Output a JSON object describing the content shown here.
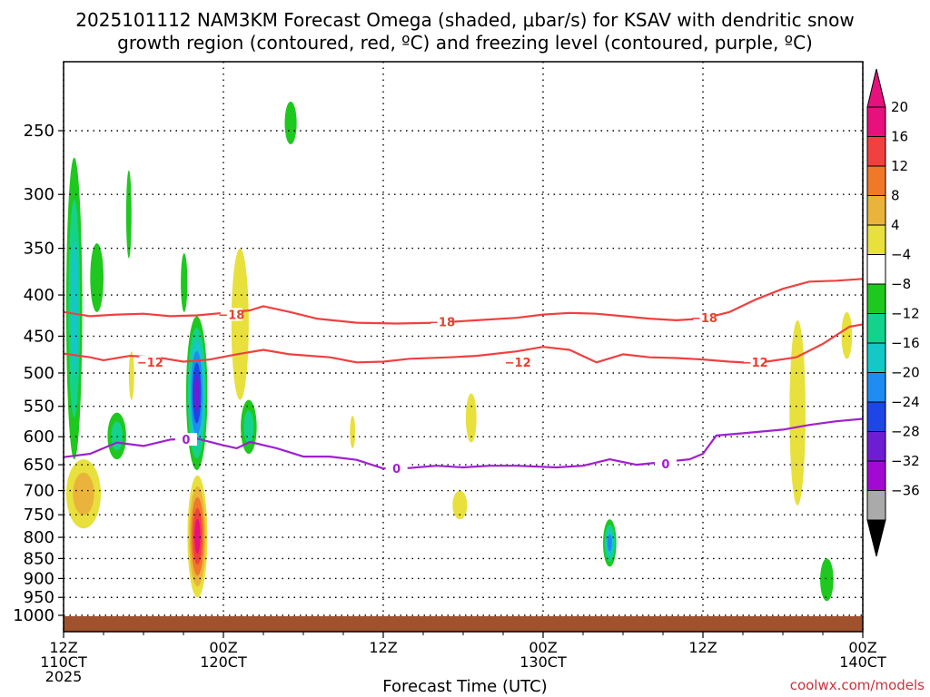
{
  "title": {
    "line1": "2025101112 NAM3KM Forecast Omega (shaded, μbar/s) for KSAV with dendritic snow",
    "line2": "growth region (contoured, red, ºC) and freezing level (contoured, purple, ºC)"
  },
  "credit": "coolwx.com/models",
  "chart_data": {
    "type": "heatmap",
    "xlabel": "Forecast Time (UTC)",
    "ylabel": "",
    "x_ticks": [
      {
        "hour": 0,
        "line1": "12Z",
        "line2": "110CT",
        "line3": "2025"
      },
      {
        "hour": 12,
        "line1": "00Z",
        "line2": "120CT",
        "line3": ""
      },
      {
        "hour": 24,
        "line1": "12Z",
        "line2": "",
        "line3": ""
      },
      {
        "hour": 36,
        "line1": "00Z",
        "line2": "130CT",
        "line3": ""
      },
      {
        "hour": 48,
        "line1": "12Z",
        "line2": "",
        "line3": ""
      },
      {
        "hour": 60,
        "line1": "00Z",
        "line2": "140CT",
        "line3": ""
      }
    ],
    "xlim": [
      0,
      60
    ],
    "y_scale": "log-pressure",
    "ylim_hpa": [
      1000,
      200
    ],
    "y_ticks": [
      250,
      300,
      350,
      400,
      450,
      500,
      550,
      600,
      650,
      700,
      750,
      800,
      850,
      900,
      950,
      1000
    ],
    "grid": true,
    "colorbar": {
      "labels": [
        "20",
        "16",
        "12",
        "8",
        "4",
        "-4",
        "-8",
        "-12",
        "-16",
        "-20",
        "-24",
        "-28",
        "-32",
        "-36"
      ],
      "bins": [
        {
          "min": 20,
          "max": 24,
          "color": "#e8107c"
        },
        {
          "min": 16,
          "max": 20,
          "color": "#f04040"
        },
        {
          "min": 12,
          "max": 16,
          "color": "#f07828"
        },
        {
          "min": 8,
          "max": 12,
          "color": "#eab43c"
        },
        {
          "min": 4,
          "max": 8,
          "color": "#e8e03c"
        },
        {
          "min": -4,
          "max": 4,
          "color": "#ffffff"
        },
        {
          "min": -8,
          "max": -4,
          "color": "#1ec81e"
        },
        {
          "min": -12,
          "max": -8,
          "color": "#14d28c"
        },
        {
          "min": -16,
          "max": -12,
          "color": "#14c8c8"
        },
        {
          "min": -20,
          "max": -16,
          "color": "#1e8cf0"
        },
        {
          "min": -24,
          "max": -20,
          "color": "#1e46e6"
        },
        {
          "min": -28,
          "max": -24,
          "color": "#6e1ed2"
        },
        {
          "min": -32,
          "max": -28,
          "color": "#a00ad2"
        },
        {
          "min": -36,
          "max": -32,
          "color": "#aaaaaa"
        }
      ],
      "max_arrow_color": "#e8107c",
      "min_arrow_color": "#000000"
    },
    "contours": [
      {
        "name": "-18",
        "color": "#f04040",
        "label_class": "clabel-red",
        "points": [
          [
            0,
            420
          ],
          [
            2,
            425
          ],
          [
            4,
            423
          ],
          [
            6,
            422
          ],
          [
            8,
            425
          ],
          [
            10,
            424
          ],
          [
            12,
            421
          ],
          [
            14,
            418
          ],
          [
            15,
            413
          ],
          [
            17,
            420
          ],
          [
            19,
            428
          ],
          [
            22,
            433
          ],
          [
            25,
            434
          ],
          [
            28,
            433
          ],
          [
            31,
            430
          ],
          [
            34,
            427
          ],
          [
            36,
            423
          ],
          [
            38,
            421
          ],
          [
            40,
            422
          ],
          [
            42,
            425
          ],
          [
            44,
            428
          ],
          [
            46,
            430
          ],
          [
            48,
            428
          ],
          [
            50,
            420
          ],
          [
            52,
            405
          ],
          [
            54,
            393
          ],
          [
            56,
            385
          ],
          [
            58,
            384
          ],
          [
            60,
            382
          ]
        ],
        "labels": [
          [
            12.6,
            424
          ],
          [
            28.4,
            433
          ],
          [
            48.1,
            428
          ]
        ]
      },
      {
        "name": "-12",
        "color": "#f04040",
        "label_class": "clabel-red",
        "points": [
          [
            0,
            473
          ],
          [
            2,
            478
          ],
          [
            3,
            482
          ],
          [
            5,
            476
          ],
          [
            7,
            478
          ],
          [
            9,
            484
          ],
          [
            11,
            481
          ],
          [
            13,
            474
          ],
          [
            15,
            468
          ],
          [
            17,
            474
          ],
          [
            20,
            478
          ],
          [
            22,
            485
          ],
          [
            24,
            484
          ],
          [
            26,
            480
          ],
          [
            29,
            478
          ],
          [
            31,
            476
          ],
          [
            34,
            470
          ],
          [
            36,
            464
          ],
          [
            38,
            468
          ],
          [
            40,
            485
          ],
          [
            42,
            474
          ],
          [
            44,
            478
          ],
          [
            46,
            479
          ],
          [
            48,
            481
          ],
          [
            50,
            484
          ],
          [
            52,
            486
          ],
          [
            55,
            478
          ],
          [
            57,
            460
          ],
          [
            59,
            438
          ],
          [
            60,
            435
          ]
        ],
        "labels": [
          [
            6.5,
            486
          ],
          [
            34.1,
            486
          ],
          [
            51.9,
            486
          ]
        ]
      },
      {
        "name": "0",
        "color": "#a020d0",
        "label_class": "clabel-purple",
        "points": [
          [
            0,
            636
          ],
          [
            2,
            630
          ],
          [
            4,
            610
          ],
          [
            6,
            616
          ],
          [
            8,
            605
          ],
          [
            10,
            603
          ],
          [
            12,
            615
          ],
          [
            13,
            620
          ],
          [
            14,
            609
          ],
          [
            16,
            620
          ],
          [
            18,
            635
          ],
          [
            20,
            635
          ],
          [
            22,
            641
          ],
          [
            24,
            657
          ],
          [
            26,
            656
          ],
          [
            28,
            652
          ],
          [
            30,
            655
          ],
          [
            32,
            652
          ],
          [
            34,
            652
          ],
          [
            37,
            655
          ],
          [
            39,
            652
          ],
          [
            41,
            640
          ],
          [
            43,
            650
          ],
          [
            45,
            645
          ],
          [
            47,
            640
          ],
          [
            48,
            630
          ],
          [
            49,
            598
          ],
          [
            51,
            594
          ],
          [
            54,
            588
          ],
          [
            56,
            580
          ],
          [
            58,
            574
          ],
          [
            60,
            570
          ]
        ],
        "labels": [
          [
            9.2,
            606
          ],
          [
            25.0,
            658
          ],
          [
            45.2,
            650
          ]
        ]
      }
    ],
    "cells": [
      {
        "t0": 0.2,
        "t1": 1.4,
        "p0": 270,
        "p1": 640,
        "bins": [
          -4,
          -8,
          -12
        ]
      },
      {
        "t0": 0.2,
        "t1": 2.8,
        "p0": 640,
        "p1": 780,
        "bins": [
          4,
          8
        ]
      },
      {
        "t0": 2.0,
        "t1": 3.0,
        "p0": 345,
        "p1": 420,
        "bins": [
          -4
        ]
      },
      {
        "t0": 3.3,
        "t1": 4.7,
        "p0": 560,
        "p1": 640,
        "bins": [
          -4,
          -8
        ]
      },
      {
        "t0": 4.7,
        "t1": 5.1,
        "p0": 280,
        "p1": 360,
        "bins": [
          -4
        ]
      },
      {
        "t0": 4.9,
        "t1": 5.3,
        "p0": 470,
        "p1": 540,
        "bins": [
          4
        ]
      },
      {
        "t0": 8.8,
        "t1": 9.3,
        "p0": 355,
        "p1": 420,
        "bins": [
          -4
        ]
      },
      {
        "t0": 9.2,
        "t1": 10.8,
        "p0": 425,
        "p1": 660,
        "bins": [
          -4,
          -8,
          -12,
          -16,
          -20,
          -24
        ]
      },
      {
        "t0": 9.3,
        "t1": 10.8,
        "p0": 670,
        "p1": 950,
        "bins": [
          4,
          8,
          12,
          16,
          20
        ]
      },
      {
        "t0": 12.6,
        "t1": 13.9,
        "p0": 350,
        "p1": 540,
        "bins": [
          4
        ]
      },
      {
        "t0": 13.3,
        "t1": 14.5,
        "p0": 540,
        "p1": 630,
        "bins": [
          -4,
          -8
        ]
      },
      {
        "t0": 16.6,
        "t1": 17.5,
        "p0": 230,
        "p1": 260,
        "bins": [
          -4
        ]
      },
      {
        "t0": 21.5,
        "t1": 21.9,
        "p0": 565,
        "p1": 620,
        "bins": [
          4
        ]
      },
      {
        "t0": 30.2,
        "t1": 31.0,
        "p0": 530,
        "p1": 610,
        "bins": [
          4
        ]
      },
      {
        "t0": 29.2,
        "t1": 30.3,
        "p0": 700,
        "p1": 760,
        "bins": [
          4
        ]
      },
      {
        "t0": 40.5,
        "t1": 41.5,
        "p0": 760,
        "p1": 870,
        "bins": [
          -4,
          -8,
          -12,
          -16
        ]
      },
      {
        "t0": 54.5,
        "t1": 55.7,
        "p0": 430,
        "p1": 730,
        "bins": [
          4
        ]
      },
      {
        "t0": 56.8,
        "t1": 57.8,
        "p0": 850,
        "p1": 960,
        "bins": [
          -4
        ]
      },
      {
        "t0": 58.4,
        "t1": 59.2,
        "p0": 420,
        "p1": 480,
        "bins": [
          4
        ]
      }
    ],
    "ground_color": "#a0522d"
  }
}
